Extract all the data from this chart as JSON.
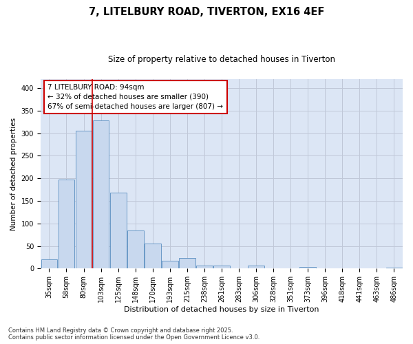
{
  "title_line1": "7, LITELBURY ROAD, TIVERTON, EX16 4EF",
  "title_line2": "Size of property relative to detached houses in Tiverton",
  "xlabel": "Distribution of detached houses by size in Tiverton",
  "ylabel": "Number of detached properties",
  "categories": [
    "35sqm",
    "58sqm",
    "80sqm",
    "103sqm",
    "125sqm",
    "148sqm",
    "170sqm",
    "193sqm",
    "215sqm",
    "238sqm",
    "261sqm",
    "283sqm",
    "306sqm",
    "328sqm",
    "351sqm",
    "373sqm",
    "396sqm",
    "418sqm",
    "441sqm",
    "463sqm",
    "486sqm"
  ],
  "values": [
    20,
    197,
    305,
    328,
    168,
    84,
    56,
    18,
    23,
    6,
    6,
    0,
    6,
    0,
    0,
    4,
    0,
    0,
    0,
    0,
    2
  ],
  "bar_color": "#c8d8ee",
  "bar_edge_color": "#5a8fc0",
  "vline_x": 2.5,
  "vline_color": "#cc0000",
  "annotation_text": "7 LITELBURY ROAD: 94sqm\n← 32% of detached houses are smaller (390)\n67% of semi-detached houses are larger (807) →",
  "annotation_box_color": "#ffffff",
  "annotation_box_edge": "#cc0000",
  "ylim": [
    0,
    420
  ],
  "yticks": [
    0,
    50,
    100,
    150,
    200,
    250,
    300,
    350,
    400
  ],
  "grid_color": "#c0c8d8",
  "background_color": "#dce6f5",
  "figure_background": "#ffffff",
  "footer_line1": "Contains HM Land Registry data © Crown copyright and database right 2025.",
  "footer_line2": "Contains public sector information licensed under the Open Government Licence v3.0.",
  "title_fontsize": 10.5,
  "subtitle_fontsize": 8.5,
  "ylabel_fontsize": 7.5,
  "xlabel_fontsize": 8,
  "tick_fontsize": 7,
  "annotation_fontsize": 7.5,
  "footer_fontsize": 6
}
